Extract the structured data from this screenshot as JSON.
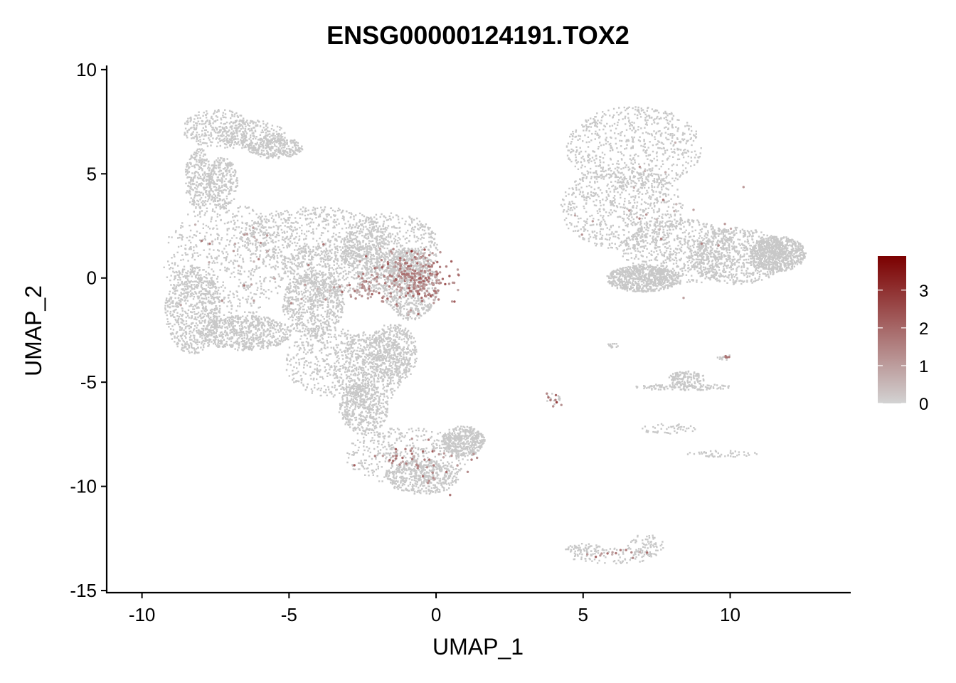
{
  "chart_data": {
    "type": "scatter",
    "title": "ENSG00000124191.TOX2",
    "xlabel": "UMAP_1",
    "ylabel": "UMAP_2",
    "xlim": [
      -11.2,
      14.1
    ],
    "ylim": [
      -15.1,
      10.2
    ],
    "x_ticks": [
      -10,
      -5,
      0,
      5,
      10
    ],
    "y_ticks": [
      10,
      5,
      0,
      -5,
      -10,
      -15
    ],
    "x_tick_labels": [
      "-10",
      "-5",
      "0",
      "5",
      "10"
    ],
    "y_tick_labels": [
      "10",
      "5",
      "0",
      "-5",
      "-10",
      "-15"
    ],
    "grid": false,
    "legend": {
      "position": "right",
      "type": "colorbar",
      "range": [
        0,
        3.9
      ],
      "breaks": [
        0,
        1,
        2,
        3
      ],
      "break_labels": [
        "0",
        "1",
        "2",
        "3"
      ],
      "low_color": "#d3d3d3",
      "high_color": "#7b0000"
    },
    "point_color_zero": "#c8c8c8",
    "clusters": [
      {
        "label": "upper-left arm",
        "ellipses": [
          [
            -7.5,
            7.2,
            1.1,
            0.9
          ],
          [
            -6.3,
            6.9,
            1.1,
            0.7
          ],
          [
            -5.5,
            6.3,
            0.9,
            0.5
          ],
          [
            -8.1,
            4.8,
            0.45,
            1.4
          ],
          [
            -7.3,
            4.6,
            0.5,
            1.2
          ]
        ],
        "n": 1400
      },
      {
        "label": "large left cluster",
        "ellipses": [
          [
            -7.2,
            0.8,
            2.0,
            2.8
          ],
          [
            -4.2,
            2.0,
            2.4,
            1.4
          ],
          [
            -3.0,
            0.6,
            2.2,
            1.2
          ],
          [
            -1.6,
            1.5,
            1.6,
            1.6
          ],
          [
            -0.9,
            -0.3,
            0.9,
            1.6
          ],
          [
            -8.3,
            -1.5,
            0.9,
            2.0
          ],
          [
            -6.5,
            -2.6,
            1.5,
            0.8
          ],
          [
            -4.2,
            -1.2,
            1.0,
            1.5
          ]
        ],
        "n": 5200
      },
      {
        "label": "middle lower cluster",
        "ellipses": [
          [
            -3.5,
            -4.0,
            1.6,
            1.6
          ],
          [
            -2.3,
            -4.3,
            1.2,
            1.7
          ],
          [
            -1.5,
            -3.6,
            0.8,
            1.4
          ],
          [
            -2.5,
            -6.2,
            0.8,
            1.2
          ]
        ],
        "n": 1800
      },
      {
        "label": "bottom lobe",
        "ellipses": [
          [
            -1.0,
            -8.5,
            2.0,
            1.3
          ],
          [
            -0.5,
            -9.5,
            1.2,
            0.8
          ],
          [
            0.9,
            -7.8,
            0.7,
            0.7
          ]
        ],
        "n": 1300
      },
      {
        "label": "right cluster",
        "ellipses": [
          [
            6.7,
            6.3,
            2.2,
            1.9
          ],
          [
            6.3,
            3.4,
            2.0,
            1.9
          ],
          [
            8.3,
            1.3,
            1.9,
            1.5
          ],
          [
            10.2,
            1.1,
            1.6,
            1.3
          ],
          [
            11.6,
            1.2,
            0.9,
            0.8
          ],
          [
            7.0,
            0.0,
            1.2,
            0.6
          ]
        ],
        "n": 4200
      },
      {
        "label": "thin streak",
        "ellipses": [
          [
            8.4,
            -5.2,
            1.6,
            0.15
          ],
          [
            8.5,
            -4.8,
            0.6,
            0.35
          ]
        ],
        "n": 260
      },
      {
        "label": "diagonal tail",
        "ellipses": [
          [
            9.7,
            -8.4,
            1.2,
            0.15
          ],
          [
            7.9,
            -7.2,
            0.9,
            0.25
          ]
        ],
        "n": 100
      },
      {
        "label": "bottom arc",
        "ellipses": [
          [
            6.0,
            -13.3,
            1.5,
            0.35
          ],
          [
            5.0,
            -13.0,
            0.6,
            0.3
          ],
          [
            7.1,
            -12.8,
            0.6,
            0.5
          ]
        ],
        "n": 210
      },
      {
        "label": "small group",
        "ellipses": [
          [
            4.0,
            -5.8,
            0.25,
            0.35
          ],
          [
            6.0,
            -3.2,
            0.2,
            0.1
          ],
          [
            9.8,
            -3.8,
            0.25,
            0.15
          ]
        ],
        "n": 40
      }
    ],
    "expressing_regions": [
      {
        "center": [
          -0.7,
          0.0
        ],
        "spread": [
          1.3,
          1.4
        ],
        "n": 260,
        "mean_value": 1.4
      },
      {
        "center": [
          -2.6,
          -0.5
        ],
        "spread": [
          1.3,
          0.9
        ],
        "n": 60,
        "mean_value": 1.1
      },
      {
        "center": [
          -0.8,
          -8.8
        ],
        "spread": [
          1.9,
          1.2
        ],
        "n": 55,
        "mean_value": 1.3
      },
      {
        "center": [
          -6.5,
          0.5
        ],
        "spread": [
          2.5,
          2.5
        ],
        "n": 30,
        "mean_value": 1.2
      },
      {
        "center": [
          7.5,
          3.0
        ],
        "spread": [
          3.0,
          2.5
        ],
        "n": 25,
        "mean_value": 1.1
      },
      {
        "center": [
          6.1,
          -13.2
        ],
        "spread": [
          1.2,
          0.3
        ],
        "n": 14,
        "mean_value": 1.3
      },
      {
        "center": [
          4.0,
          -5.8
        ],
        "spread": [
          0.2,
          0.3
        ],
        "n": 8,
        "mean_value": 1.6
      },
      {
        "center": [
          9.9,
          -3.8
        ],
        "spread": [
          0.15,
          0.1
        ],
        "n": 4,
        "mean_value": 1.5
      }
    ]
  }
}
